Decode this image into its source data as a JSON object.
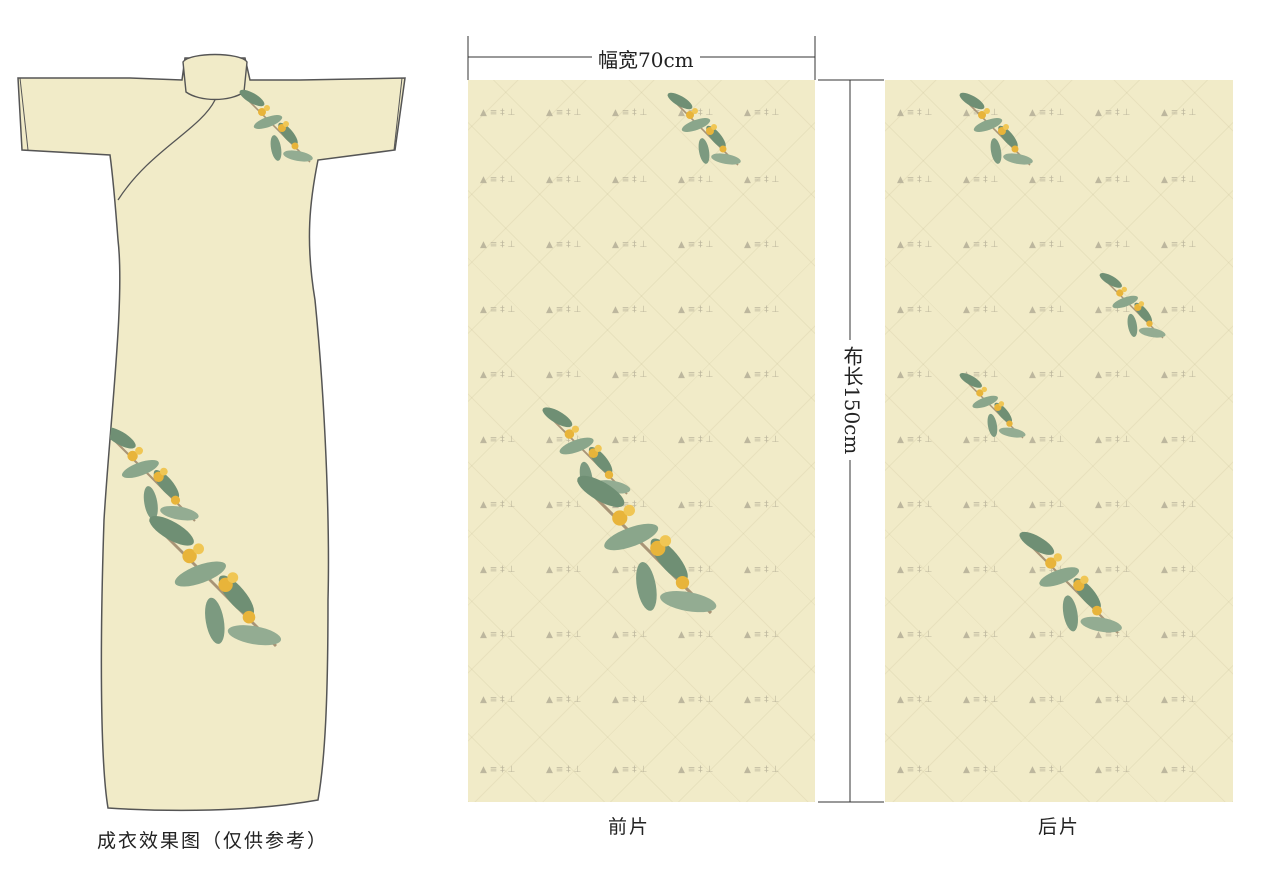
{
  "labels": {
    "width_dim": "幅宽70cm",
    "length_dim": "布长150cm",
    "garment_caption": "成衣效果图（仅供参考）",
    "front_caption": "前片",
    "back_caption": "后片"
  },
  "colors": {
    "fabric": "#f1ebc8",
    "leaf": "#6f8f74",
    "flower": "#e8b43a",
    "stem": "#a89476",
    "outline": "#555555"
  },
  "icons": [
    "osmanthus-branch-icon",
    "qipao-dress-icon"
  ]
}
